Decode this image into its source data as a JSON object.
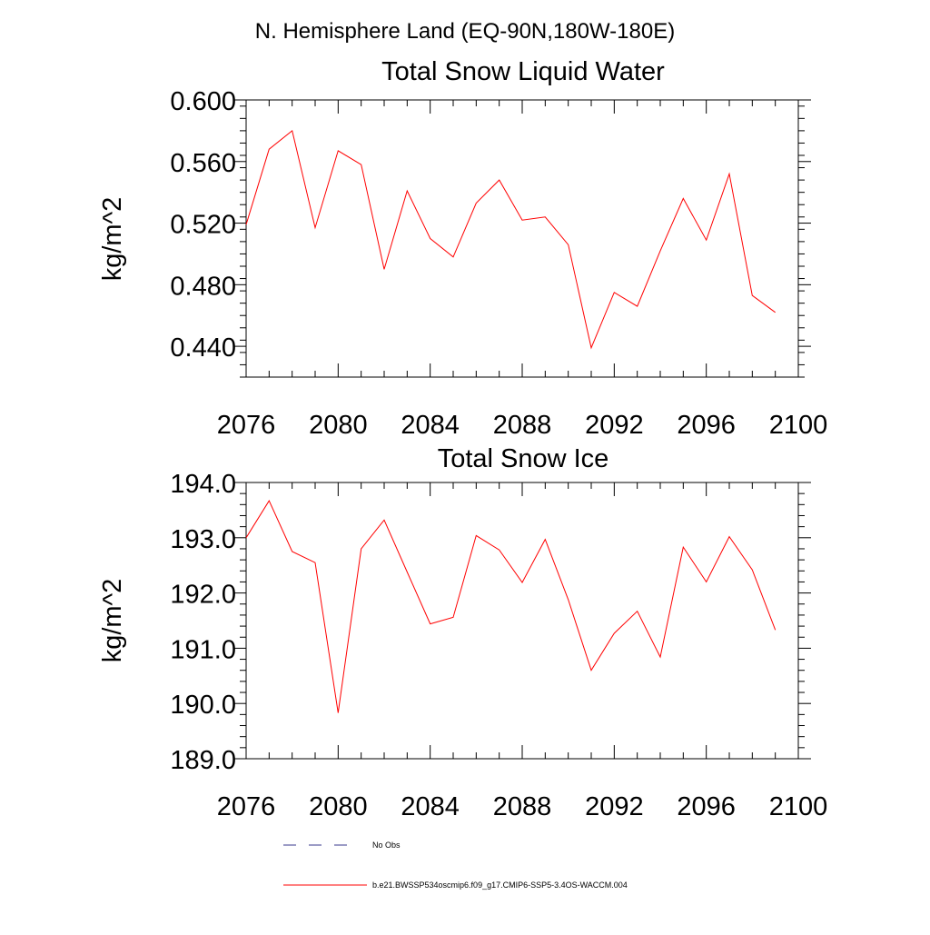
{
  "page_title": "N. Hemisphere Land (EQ-90N,180W-180E)",
  "chart_data": [
    {
      "type": "line",
      "title": "Total Snow Liquid Water",
      "xlabel": "",
      "ylabel": "kg/m^2",
      "xlim": [
        2076,
        2100
      ],
      "ylim": [
        0.42,
        0.6
      ],
      "xticks": [
        2076,
        2080,
        2084,
        2088,
        2092,
        2096,
        2100
      ],
      "yticks": [
        0.44,
        0.48,
        0.52,
        0.56,
        0.6
      ],
      "ytick_labels": [
        "0.440",
        "0.480",
        "0.520",
        "0.560",
        "0.600"
      ],
      "series": [
        {
          "name": "b.e21.BWSSP534oscmip6.f09_g17.CMIP6-SSP5-3.4OS-WACCM.004",
          "color": "#ff0000",
          "x": [
            2076,
            2077,
            2078,
            2079,
            2080,
            2081,
            2082,
            2083,
            2084,
            2085,
            2086,
            2087,
            2088,
            2089,
            2090,
            2091,
            2092,
            2093,
            2094,
            2095,
            2096,
            2097,
            2098,
            2099
          ],
          "values": [
            0.519,
            0.568,
            0.58,
            0.517,
            0.567,
            0.558,
            0.49,
            0.541,
            0.51,
            0.498,
            0.533,
            0.548,
            0.522,
            0.524,
            0.506,
            0.439,
            0.475,
            0.466,
            0.502,
            0.536,
            0.509,
            0.552,
            0.473,
            0.462
          ]
        }
      ]
    },
    {
      "type": "line",
      "title": "Total Snow Ice",
      "xlabel": "",
      "ylabel": "kg/m^2",
      "xlim": [
        2076,
        2100
      ],
      "ylim": [
        189.0,
        194.0
      ],
      "xticks": [
        2076,
        2080,
        2084,
        2088,
        2092,
        2096,
        2100
      ],
      "yticks": [
        189.0,
        190.0,
        191.0,
        192.0,
        193.0,
        194.0
      ],
      "ytick_labels": [
        "189.0",
        "190.0",
        "191.0",
        "192.0",
        "193.0",
        "194.0"
      ],
      "series": [
        {
          "name": "b.e21.BWSSP534oscmip6.f09_g17.CMIP6-SSP5-3.4OS-WACCM.004",
          "color": "#ff0000",
          "x": [
            2076,
            2077,
            2078,
            2079,
            2080,
            2081,
            2082,
            2083,
            2084,
            2085,
            2086,
            2087,
            2088,
            2089,
            2090,
            2091,
            2092,
            2093,
            2094,
            2095,
            2096,
            2097,
            2098,
            2099
          ],
          "values": [
            193.0,
            193.67,
            192.75,
            192.55,
            189.83,
            192.8,
            193.32,
            192.38,
            191.44,
            191.56,
            193.04,
            192.78,
            192.19,
            192.97,
            191.88,
            190.6,
            191.27,
            191.67,
            190.84,
            192.83,
            192.2,
            193.02,
            192.42,
            191.33
          ]
        }
      ]
    }
  ],
  "legend": [
    {
      "label": "No Obs",
      "style": "dashed",
      "color": "#3a3a8c"
    },
    {
      "label": "b.e21.BWSSP534oscmip6.f09_g17.CMIP6-SSP5-3.4OS-WACCM.004",
      "style": "solid",
      "color": "#ff0000"
    }
  ]
}
